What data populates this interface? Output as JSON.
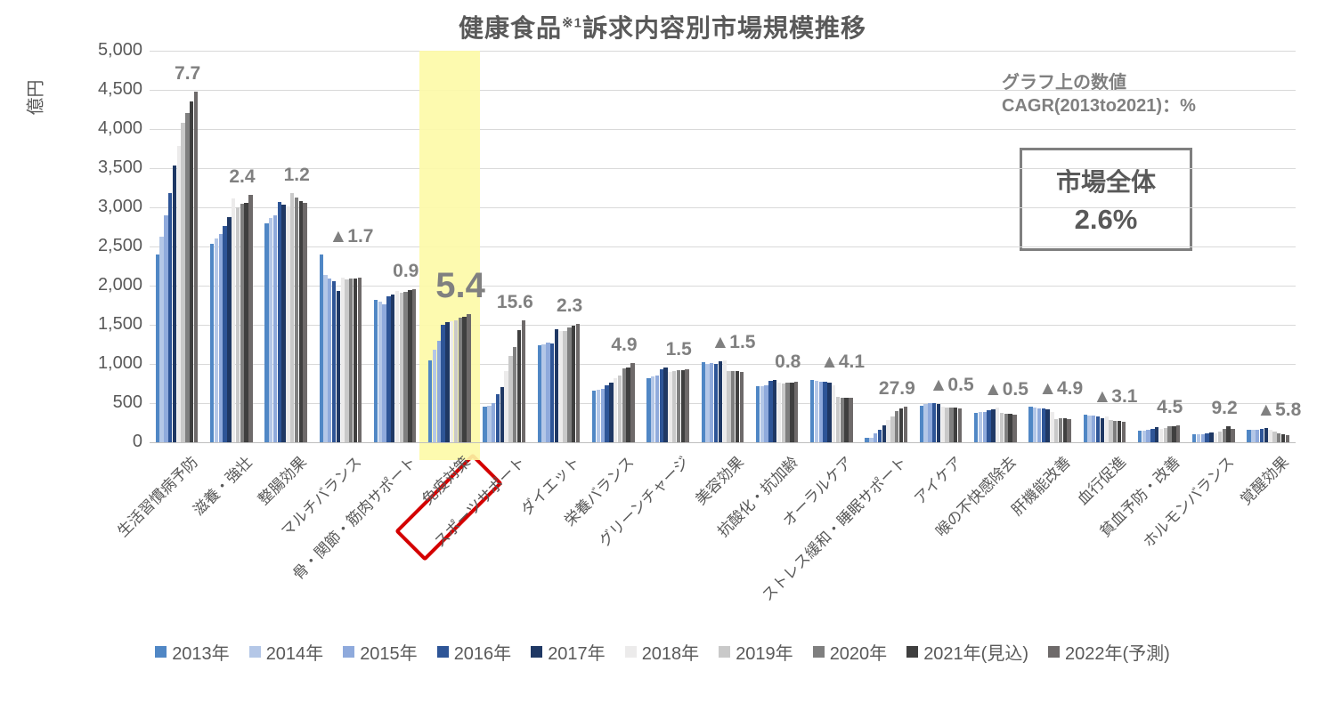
{
  "title": {
    "part1": "健康食品",
    "sup": "※1",
    "part2": "訴求内容別市場規模推移"
  },
  "y_axis": {
    "unit": "億円",
    "ticks": [
      "5,000",
      "4,500",
      "4,000",
      "3,500",
      "3,000",
      "2,500",
      "2,000",
      "1,500",
      "1,000",
      "500",
      "0"
    ]
  },
  "annotation": {
    "line1": "グラフ上の数値",
    "line2": "CAGR(2013to2021)：%"
  },
  "total_box": {
    "label": "市場全体",
    "value": "2.6%"
  },
  "legend": [
    {
      "label": "2013年",
      "color": "#5087c5"
    },
    {
      "label": "2014年",
      "color": "#b4c7e7"
    },
    {
      "label": "2015年",
      "color": "#8faadc"
    },
    {
      "label": "2016年",
      "color": "#2e5597"
    },
    {
      "label": "2017年",
      "color": "#1f3864"
    },
    {
      "label": "2018年",
      "color": "#ecebeb"
    },
    {
      "label": "2019年",
      "color": "#c9c9c9"
    },
    {
      "label": "2020年",
      "color": "#7f7f7f"
    },
    {
      "label": "2021年(見込)",
      "color": "#3f3f3f"
    },
    {
      "label": "2022年(予測)",
      "color": "#6e6a6a"
    }
  ],
  "chart_data": {
    "type": "bar",
    "title": "健康食品※1訴求内容別市場規模推移",
    "ylabel": "億円",
    "ylim": [
      0,
      5000
    ],
    "grid": true,
    "legend_position": "bottom",
    "value_note": "グラフ上の数値 CAGR(2013to2021)：%",
    "market_total_cagr": "2.6%",
    "highlight_category": "免疫対策",
    "categories": [
      "生活習慣病予防",
      "滋養・強壮",
      "整腸効果",
      "マルチバランス",
      "骨・関節・筋肉サポート",
      "免疫対策",
      "スポーツサポート",
      "ダイエット",
      "栄養バランス",
      "グリーンチャージ",
      "美容効果",
      "抗酸化・抗加齢",
      "オーラルケア",
      "ストレス緩和・睡眠サポート",
      "アイケア",
      "喉の不快感除去",
      "肝機能改善",
      "血行促進",
      "貧血予防・改善",
      "ホルモンバランス",
      "覚醒効果"
    ],
    "cagr_labels": [
      "7.7",
      "2.4",
      "1.2",
      "▲1.7",
      "0.9",
      "5.4",
      "15.6",
      "2.3",
      "4.9",
      "1.5",
      "▲1.5",
      "0.8",
      "▲4.1",
      "27.9",
      "▲0.5",
      "▲0.5",
      "▲4.9",
      "▲3.1",
      "4.5",
      "9.2",
      "▲5.8"
    ],
    "series": [
      {
        "name": "2013年",
        "color": "#5087c5",
        "values": [
          2400,
          2530,
          2800,
          2400,
          1815,
          1050,
          450,
          1240,
          655,
          820,
          1020,
          715,
          800,
          60,
          465,
          375,
          455,
          355,
          145,
          100,
          160
        ]
      },
      {
        "name": "2014年",
        "color": "#b4c7e7",
        "values": [
          2620,
          2600,
          2860,
          2140,
          1790,
          1180,
          470,
          1245,
          665,
          840,
          1000,
          720,
          780,
          62,
          485,
          385,
          440,
          345,
          150,
          102,
          158
        ]
      },
      {
        "name": "2015年",
        "color": "#8faadc",
        "values": [
          2900,
          2660,
          2900,
          2090,
          1765,
          1290,
          500,
          1275,
          685,
          855,
          1010,
          730,
          775,
          115,
          500,
          390,
          430,
          340,
          160,
          105,
          162
        ]
      },
      {
        "name": "2016年",
        "color": "#2e5597",
        "values": [
          3180,
          2760,
          3070,
          2060,
          1860,
          1500,
          610,
          1260,
          730,
          930,
          995,
          780,
          770,
          155,
          505,
          410,
          435,
          330,
          175,
          115,
          172
        ]
      },
      {
        "name": "2017年",
        "color": "#1f3864",
        "values": [
          3530,
          2880,
          3030,
          1930,
          1890,
          1530,
          700,
          1445,
          760,
          950,
          1035,
          795,
          765,
          215,
          490,
          420,
          420,
          310,
          190,
          125,
          185
        ]
      },
      {
        "name": "2018年",
        "color": "#ecebeb",
        "values": [
          3780,
          3110,
          3010,
          2100,
          1935,
          1540,
          910,
          1415,
          820,
          895,
          1050,
          760,
          730,
          280,
          455,
          440,
          390,
          330,
          165,
          110,
          160
        ]
      },
      {
        "name": "2019年",
        "color": "#c9c9c9",
        "values": [
          4080,
          3000,
          3180,
          2080,
          1905,
          1560,
          1100,
          1425,
          855,
          910,
          910,
          755,
          575,
          330,
          445,
          370,
          300,
          285,
          185,
          140,
          135
        ]
      },
      {
        "name": "2020年",
        "color": "#7f7f7f",
        "values": [
          4200,
          3040,
          3120,
          2090,
          1920,
          1590,
          1220,
          1465,
          940,
          920,
          910,
          760,
          570,
          400,
          440,
          365,
          310,
          275,
          200,
          175,
          115
        ]
      },
      {
        "name": "2021年(見込)",
        "color": "#3f3f3f",
        "values": [
          4350,
          3060,
          3080,
          2090,
          1945,
          1600,
          1430,
          1485,
          960,
          925,
          905,
          765,
          570,
          430,
          447,
          360,
          305,
          275,
          206,
          202,
          99
        ]
      },
      {
        "name": "2022年(予測)",
        "color": "#6e6a6a",
        "values": [
          4480,
          3160,
          3060,
          2100,
          1955,
          1640,
          1560,
          1510,
          1010,
          935,
          895,
          775,
          565,
          455,
          435,
          350,
          300,
          265,
          220,
          170,
          95
        ]
      }
    ]
  }
}
